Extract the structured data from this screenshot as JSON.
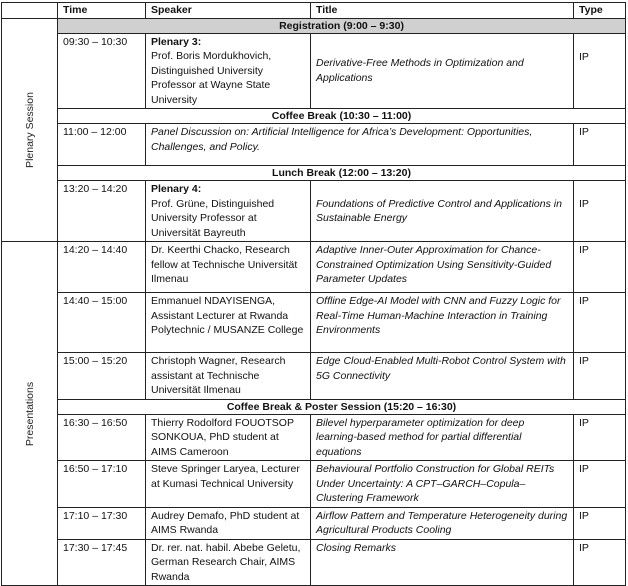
{
  "headers": {
    "session": "",
    "time": "Time",
    "speaker": "Speaker",
    "title": "Title",
    "type": "Type"
  },
  "sessions": {
    "plenary": "Plenary Session",
    "presentations": "Presentations"
  },
  "breaks": {
    "registration": "Registration (9:00 – 9:30)",
    "coffee1": "Coffee Break (10:30 – 11:00)",
    "lunch": "Lunch Break (12:00 – 13:20)",
    "coffee2": "Coffee Break & Poster Session (15:20 – 16:30)"
  },
  "plenary3": {
    "time": "09:30 – 10:30",
    "label": "Plenary 3:",
    "speaker": "Prof. Boris Mordukhovich, Distinguished University Professor at Wayne State University",
    "title": "Derivative-Free Methods in Optimization and Applications",
    "type": "IP"
  },
  "panel": {
    "time": "11:00 – 12:00",
    "title": "Panel Discussion on: Artificial Intelligence for Africa’s Development: Opportunities, Challenges, and Policy.",
    "type": "IP"
  },
  "plenary4": {
    "time": "13:20 – 14:20",
    "label": "Plenary 4:",
    "speaker": "Prof. Grüne, Distinguished University Professor at Universität Bayreuth",
    "title": "Foundations of Predictive Control and Applications in Sustainable Energy",
    "type": "IP"
  },
  "talks1": [
    {
      "time": "14:20 – 14:40",
      "speaker": "Dr. Keerthi Chacko, Research fellow at Technische Universität Ilmenau",
      "title": "Adaptive Inner-Outer Approximation for Chance-Constrained Optimization Using Sensitivity-Guided Parameter Updates",
      "type": "IP"
    },
    {
      "time": "14:40 – 15:00",
      "speaker": "Emmanuel NDAYISENGA, Assistant Lecturer at Rwanda Polytechnic / MUSANZE College",
      "title": "Offline Edge-AI Model with CNN and Fuzzy Logic for Real-Time Human-Machine Interaction in Training Environments",
      "type": "IP"
    },
    {
      "time": "15:00 – 15:20",
      "speaker": "Christoph Wagner, Research assistant at Technische Universität Ilmenau",
      "title": "Edge Cloud-Enabled Multi-Robot Control System with 5G Connectivity",
      "type": "IP"
    }
  ],
  "talks2": [
    {
      "time": "16:30 – 16:50",
      "speaker": "Thierry Rodolford FOUOTSOP SONKOUA, PhD student at AIMS Cameroon",
      "title": "Bilevel hyperparameter optimization for deep learning-based method for partial differential equations",
      "type": "IP"
    },
    {
      "time": "16:50 – 17:10",
      "speaker": "Steve Springer Laryea, Lecturer at Kumasi Technical University",
      "title": "Behavioural Portfolio Construction for Global REITs Under Uncertainty: A CPT–GARCH–Copula–Clustering Framework",
      "type": "IP"
    },
    {
      "time": "17:10 – 17:30",
      "speaker": "Audrey Demafo, PhD student at AIMS Rwanda",
      "title": "Airflow Pattern and Temperature Heterogeneity during Agricultural Products Cooling",
      "type": "IP"
    },
    {
      "time": "17:30 – 17:45",
      "speaker": "Dr. rer. nat. habil. Abebe Geletu, German Research Chair, AIMS Rwanda",
      "title": "Closing Remarks",
      "type": "IP"
    }
  ]
}
